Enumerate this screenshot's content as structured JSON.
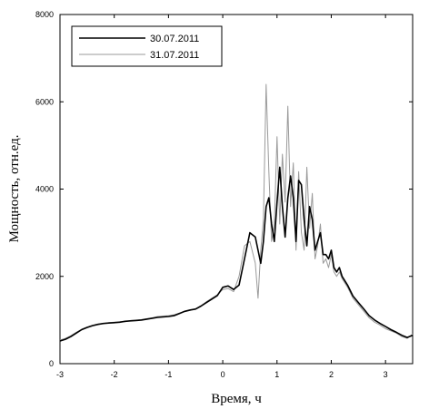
{
  "chart_data": {
    "type": "line",
    "xlabel": "Время, ч",
    "ylabel": "Мощность, отн.ед.",
    "xlim": [
      -3,
      3.5
    ],
    "ylim": [
      0,
      8000
    ],
    "x_ticks": [
      "-3",
      "-2",
      "-1",
      "0",
      "1",
      "2",
      "3"
    ],
    "y_ticks": [
      "0",
      "2000",
      "4000",
      "6000",
      "8000"
    ],
    "grid": false,
    "legend_position": "top-left",
    "series": [
      {
        "name": "30.07.2011",
        "color": "#000000",
        "x": [
          -3.0,
          -2.9,
          -2.8,
          -2.7,
          -2.6,
          -2.5,
          -2.4,
          -2.3,
          -2.2,
          -2.1,
          -2.0,
          -1.9,
          -1.8,
          -1.7,
          -1.6,
          -1.5,
          -1.4,
          -1.3,
          -1.2,
          -1.1,
          -1.0,
          -0.9,
          -0.8,
          -0.7,
          -0.6,
          -0.5,
          -0.4,
          -0.3,
          -0.2,
          -0.1,
          0.0,
          0.1,
          0.2,
          0.3,
          0.4,
          0.5,
          0.6,
          0.65,
          0.7,
          0.75,
          0.8,
          0.85,
          0.9,
          0.95,
          1.0,
          1.05,
          1.1,
          1.15,
          1.2,
          1.25,
          1.3,
          1.35,
          1.4,
          1.45,
          1.5,
          1.55,
          1.6,
          1.65,
          1.7,
          1.75,
          1.8,
          1.85,
          1.9,
          1.95,
          2.0,
          2.05,
          2.1,
          2.15,
          2.2,
          2.3,
          2.4,
          2.5,
          2.6,
          2.7,
          2.8,
          2.9,
          3.0,
          3.1,
          3.2,
          3.3,
          3.4,
          3.5
        ],
        "values": [
          520,
          560,
          620,
          700,
          780,
          830,
          870,
          900,
          920,
          930,
          940,
          950,
          970,
          980,
          990,
          1000,
          1020,
          1040,
          1060,
          1070,
          1080,
          1100,
          1150,
          1200,
          1230,
          1250,
          1320,
          1400,
          1480,
          1560,
          1750,
          1780,
          1700,
          1800,
          2400,
          3000,
          2900,
          2600,
          2300,
          2800,
          3600,
          3800,
          3200,
          2800,
          3700,
          4500,
          3600,
          2900,
          3800,
          4300,
          3800,
          2800,
          4200,
          4100,
          3300,
          2700,
          3600,
          3300,
          2600,
          2800,
          3000,
          2500,
          2500,
          2400,
          2600,
          2200,
          2100,
          2200,
          2000,
          1800,
          1550,
          1400,
          1250,
          1100,
          1000,
          920,
          850,
          780,
          720,
          650,
          600,
          650
        ]
      },
      {
        "name": "31.07.2011",
        "color": "#9a9a9a",
        "x": [
          -3.0,
          -2.9,
          -2.8,
          -2.7,
          -2.6,
          -2.5,
          -2.4,
          -2.3,
          -2.2,
          -2.1,
          -2.0,
          -1.9,
          -1.8,
          -1.7,
          -1.6,
          -1.5,
          -1.4,
          -1.3,
          -1.2,
          -1.1,
          -1.0,
          -0.9,
          -0.8,
          -0.7,
          -0.6,
          -0.5,
          -0.4,
          -0.3,
          -0.2,
          -0.1,
          0.0,
          0.1,
          0.2,
          0.3,
          0.4,
          0.5,
          0.6,
          0.65,
          0.7,
          0.75,
          0.8,
          0.85,
          0.9,
          0.95,
          1.0,
          1.05,
          1.1,
          1.15,
          1.2,
          1.25,
          1.3,
          1.35,
          1.4,
          1.45,
          1.5,
          1.55,
          1.6,
          1.65,
          1.7,
          1.75,
          1.8,
          1.85,
          1.9,
          1.95,
          2.0,
          2.05,
          2.1,
          2.15,
          2.2,
          2.3,
          2.4,
          2.5,
          2.6,
          2.7,
          2.8,
          2.9,
          3.0,
          3.1,
          3.2,
          3.3,
          3.4,
          3.5
        ],
        "values": [
          540,
          580,
          640,
          720,
          790,
          840,
          880,
          910,
          920,
          940,
          950,
          960,
          960,
          990,
          1000,
          1010,
          1030,
          1050,
          1080,
          1090,
          1100,
          1120,
          1160,
          1190,
          1220,
          1260,
          1330,
          1420,
          1500,
          1580,
          1700,
          1720,
          1650,
          2000,
          2700,
          2800,
          2300,
          1500,
          2600,
          3300,
          6400,
          4400,
          2800,
          3200,
          5200,
          3200,
          4800,
          3700,
          5900,
          3600,
          4600,
          2600,
          4400,
          3000,
          2600,
          4500,
          3100,
          3900,
          2400,
          2700,
          3200,
          2300,
          2400,
          2200,
          2500,
          2100,
          2000,
          2100,
          1950,
          1750,
          1500,
          1350,
          1200,
          1050,
          950,
          880,
          800,
          750,
          700,
          620,
          580,
          680
        ]
      }
    ]
  }
}
